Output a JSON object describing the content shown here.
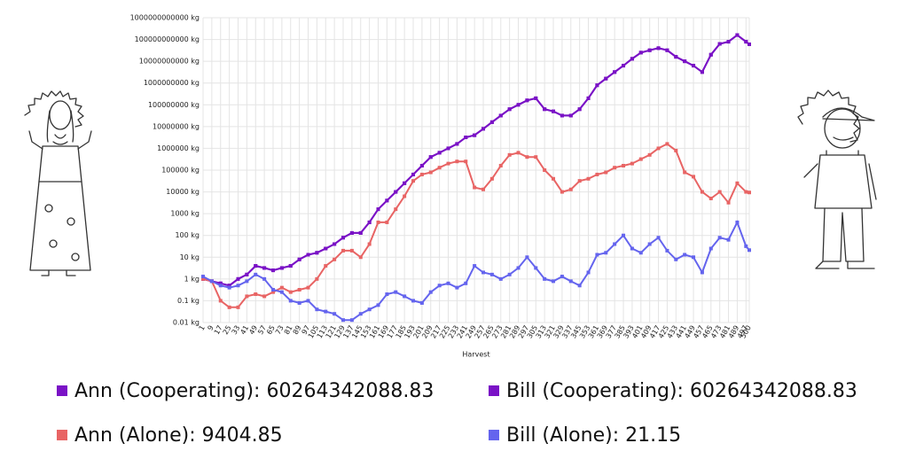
{
  "chart_data": {
    "type": "line",
    "x_label": "Harvest",
    "ylog": true,
    "grid": true,
    "x": [
      1,
      9,
      17,
      25,
      33,
      41,
      49,
      57,
      65,
      73,
      81,
      89,
      97,
      105,
      113,
      121,
      129,
      137,
      145,
      153,
      161,
      169,
      177,
      185,
      193,
      201,
      209,
      217,
      225,
      233,
      241,
      249,
      257,
      265,
      273,
      281,
      289,
      297,
      305,
      313,
      321,
      329,
      337,
      345,
      353,
      361,
      369,
      377,
      385,
      393,
      401,
      409,
      417,
      425,
      433,
      441,
      449,
      457,
      465,
      473,
      481,
      489,
      497,
      500
    ],
    "xlim": [
      1,
      500
    ],
    "xticks": [
      1,
      9,
      17,
      25,
      33,
      41,
      49,
      57,
      65,
      73,
      81,
      89,
      97,
      105,
      113,
      121,
      129,
      137,
      145,
      153,
      161,
      169,
      177,
      185,
      193,
      201,
      209,
      217,
      225,
      233,
      241,
      249,
      257,
      265,
      273,
      281,
      289,
      297,
      305,
      313,
      321,
      329,
      337,
      345,
      353,
      361,
      369,
      377,
      385,
      393,
      401,
      409,
      417,
      425,
      433,
      441,
      449,
      457,
      465,
      473,
      481,
      489,
      497,
      500
    ],
    "ylim": [
      0.01,
      1000000000000.0
    ],
    "yticks": [
      {
        "value": 0.01,
        "label": "0.01 kg"
      },
      {
        "value": 0.1,
        "label": "0.1 kg"
      },
      {
        "value": 1,
        "label": "1 kg"
      },
      {
        "value": 10,
        "label": "10 kg"
      },
      {
        "value": 100,
        "label": "100 kg"
      },
      {
        "value": 1000,
        "label": "1000 kg"
      },
      {
        "value": 10000,
        "label": "10000 kg"
      },
      {
        "value": 100000,
        "label": "100000 kg"
      },
      {
        "value": 1000000,
        "label": "1000000 kg"
      },
      {
        "value": 10000000,
        "label": "10000000 kg"
      },
      {
        "value": 100000000,
        "label": "100000000 kg"
      },
      {
        "value": 1000000000,
        "label": "1000000000 kg"
      },
      {
        "value": 10000000000,
        "label": "10000000000 kg"
      },
      {
        "value": 100000000000,
        "label": "100000000000 kg"
      },
      {
        "value": 1000000000000,
        "label": "1000000000000 kg"
      }
    ],
    "series": [
      {
        "name": "Ann (Cooperating): 60264342088.83",
        "color": "#7a12c6",
        "values": [
          1,
          0.79,
          0.63,
          0.5,
          1,
          1.6,
          4,
          3.2,
          2.5,
          3.2,
          4,
          7.9,
          13,
          16,
          25,
          40,
          79,
          130,
          130,
          400,
          1600,
          4000,
          10000,
          25000,
          63000,
          160000,
          400000,
          630000,
          1000000.0,
          1600000.0,
          3200000.0,
          4000000.0,
          7900000.0,
          16000000.0,
          32000000.0,
          63000000.0,
          100000000.0,
          160000000.0,
          200000000.0,
          63000000.0,
          50000000.0,
          32000000.0,
          32000000.0,
          63000000.0,
          200000000.0,
          790000000.0,
          1600000000.0,
          3200000000.0,
          6300000000.0,
          13000000000.0,
          25000000000.0,
          32000000000.0,
          40000000000.0,
          32000000000.0,
          16000000000.0,
          10000000000.0,
          6300000000.0,
          3200000000.0,
          20000000000.0,
          63000000000.0,
          79000000000.0,
          160000000000.0,
          79000000000.0,
          60264342088.83
        ]
      },
      {
        "name": "Bill (Cooperating): 60264342088.83",
        "color": "#7a12c6",
        "values": [
          1,
          0.79,
          0.63,
          0.5,
          1,
          1.6,
          4,
          3.2,
          2.5,
          3.2,
          4,
          7.9,
          13,
          16,
          25,
          40,
          79,
          130,
          130,
          400,
          1600,
          4000,
          10000,
          25000,
          63000,
          160000,
          400000,
          630000,
          1000000.0,
          1600000.0,
          3200000.0,
          4000000.0,
          7900000.0,
          16000000.0,
          32000000.0,
          63000000.0,
          100000000.0,
          160000000.0,
          200000000.0,
          63000000.0,
          50000000.0,
          32000000.0,
          32000000.0,
          63000000.0,
          200000000.0,
          790000000.0,
          1600000000.0,
          3200000000.0,
          6300000000.0,
          13000000000.0,
          25000000000.0,
          32000000000.0,
          40000000000.0,
          32000000000.0,
          16000000000.0,
          10000000000.0,
          6300000000.0,
          3200000000.0,
          20000000000.0,
          63000000000.0,
          79000000000.0,
          160000000000.0,
          79000000000.0,
          60264342088.83
        ]
      },
      {
        "name": "Ann (Alone): 9404.85",
        "color": "#e86464",
        "values": [
          1,
          0.79,
          0.1,
          0.05,
          0.05,
          0.16,
          0.2,
          0.16,
          0.25,
          0.4,
          0.25,
          0.32,
          0.4,
          1,
          4,
          7.9,
          20,
          20,
          10,
          40,
          400,
          400,
          1600,
          6300,
          32000,
          63000,
          79000,
          130000,
          200000,
          250000,
          250000,
          16000,
          13000,
          40000,
          160000,
          500000,
          630000,
          400000,
          400000,
          100000,
          40000,
          10000,
          13000,
          32000,
          40000,
          63000,
          79000,
          130000,
          160000,
          200000,
          320000,
          500000,
          1000000.0,
          1600000.0,
          790000,
          79000,
          50000,
          10000,
          5000,
          10000,
          3200,
          25000,
          10000,
          9404.85
        ]
      },
      {
        "name": "Bill (Alone): 21.15",
        "color": "#6464ee",
        "values": [
          1.3,
          0.79,
          0.5,
          0.4,
          0.5,
          0.79,
          1.6,
          1,
          0.32,
          0.25,
          0.1,
          0.079,
          0.1,
          0.04,
          0.032,
          0.025,
          0.013,
          0.013,
          0.025,
          0.04,
          0.063,
          0.2,
          0.25,
          0.16,
          0.1,
          0.079,
          0.25,
          0.5,
          0.63,
          0.4,
          0.63,
          4,
          2,
          1.6,
          1,
          1.6,
          3.2,
          10,
          3.2,
          1,
          0.79,
          1.3,
          0.79,
          0.5,
          2,
          13,
          16,
          40,
          100,
          25,
          16,
          40,
          79,
          20,
          7.9,
          13,
          10,
          2,
          25,
          79,
          63,
          400,
          32,
          21.15
        ]
      }
    ]
  }
}
